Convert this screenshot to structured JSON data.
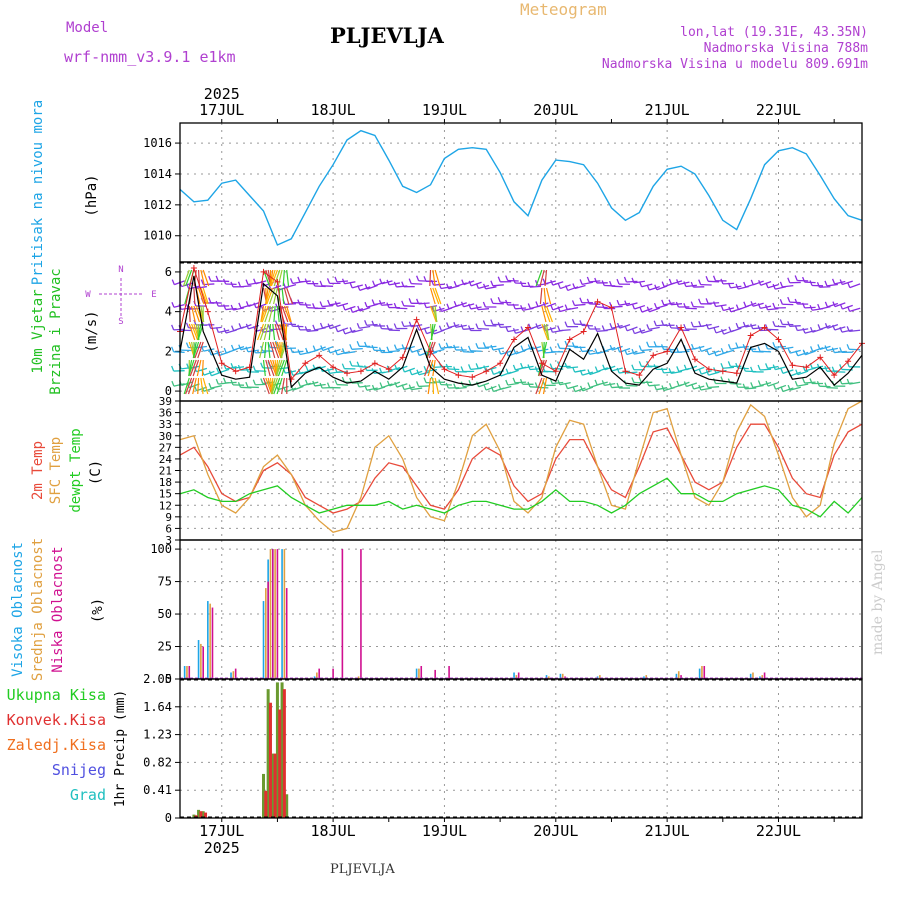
{
  "header": {
    "model_label": "Model",
    "model_name": "wrf-nmm_v3.9.1  e1km",
    "title": "PLJEVLJA",
    "meteogram_label": "Meteogram",
    "lonlat": "lon,lat (19.31E, 43.35N)",
    "altitude": "Nadmorska Visina 788m",
    "model_altitude": "Nadmorska Visina u modelu 809.691m",
    "bottom_title": "PLJEVLJA",
    "watermark": "made by Angel"
  },
  "colors": {
    "pressure": "#1ea5e6",
    "wind_label": "#22c022",
    "wind_speed": "#000000",
    "gust": "#e02020",
    "temp2m": "#e84a3a",
    "sfc": "#e0a040",
    "dewpt": "#22cc22",
    "cloud_high": "#1ea5e6",
    "cloud_mid": "#e0a040",
    "cloud_low": "#d01090",
    "precip_total": "#22cc22",
    "precip_conv": "#e03030",
    "precip_frozen": "#f07020",
    "snow": "#5050e0",
    "graupel": "#20c0c0",
    "purple": "#b040d0"
  },
  "chart_data": {
    "type": "line",
    "time_axis": {
      "top_labels": [
        "17JUL",
        "18JUL",
        "19JUL",
        "20JUL",
        "21JUL",
        "22JUL"
      ],
      "bottom_labels": [
        "17JUL",
        "18JUL",
        "19JUL",
        "20JUL",
        "21JUL",
        "22JUL"
      ],
      "year": "2025",
      "start_hour_offset": 15,
      "span_hours": 147
    },
    "panels": [
      {
        "id": "pressure",
        "ylabel_lines": [
          "Pritisak na nivou mora"
        ],
        "unit": "(hPa)",
        "yticks": [
          "1010",
          "1012",
          "1014",
          "1016"
        ],
        "ylim": [
          1008.3,
          1017.3
        ],
        "series": [
          {
            "x": [
              15,
              18,
              21,
              24,
              27,
              30,
              33,
              36,
              39,
              42,
              45,
              48,
              51,
              54,
              57,
              60,
              63,
              66,
              69,
              72,
              75,
              78,
              81,
              84,
              87,
              90,
              93,
              96,
              99,
              102,
              105,
              108,
              111,
              114,
              117,
              120,
              123,
              126,
              129,
              132,
              135,
              138,
              141,
              144,
              147,
              150,
              153,
              156,
              159,
              162
            ],
            "values": [
              1013.0,
              1012.2,
              1012.3,
              1013.4,
              1013.6,
              1012.6,
              1011.6,
              1009.4,
              1009.8,
              1011.5,
              1013.2,
              1014.6,
              1016.2,
              1016.8,
              1016.5,
              1014.9,
              1013.2,
              1012.8,
              1013.3,
              1015.0,
              1015.6,
              1015.7,
              1015.6,
              1014.1,
              1012.2,
              1011.3,
              1013.6,
              1014.9,
              1014.8,
              1014.6,
              1013.4,
              1011.8,
              1011.0,
              1011.5,
              1013.2,
              1014.3,
              1014.5,
              1014.0,
              1012.6,
              1011.0,
              1010.4,
              1012.4,
              1014.6,
              1015.5,
              1015.7,
              1015.3,
              1013.9,
              1012.4,
              1011.3,
              1011.0
            ]
          }
        ]
      },
      {
        "id": "wind",
        "ylabel_lines": [
          "10m Vjetar",
          "Brzina i Pravac"
        ],
        "unit": "(m/s)",
        "yticks": [
          "0",
          "2",
          "4",
          "6"
        ],
        "ylim": [
          -0.5,
          6.5
        ],
        "compass": {
          "N": "N",
          "E": "E",
          "W": "W",
          "S": "S"
        },
        "series": [
          {
            "name": "speed",
            "x": [
              15,
              18,
              20,
              24,
              27,
              30,
              33,
              36,
              39,
              42,
              45,
              48,
              51,
              54,
              57,
              60,
              63,
              66,
              69,
              72,
              75,
              78,
              81,
              84,
              87,
              90,
              93,
              96,
              99,
              102,
              105,
              108,
              111,
              114,
              117,
              120,
              123,
              126,
              129,
              132,
              135,
              138,
              141,
              144,
              147,
              150,
              153,
              156,
              159,
              162
            ],
            "values": [
              2.0,
              5.8,
              3.0,
              0.8,
              0.6,
              0.7,
              5.4,
              4.8,
              0.2,
              0.9,
              1.2,
              0.7,
              0.4,
              0.5,
              1.0,
              0.6,
              1.2,
              3.1,
              1.2,
              0.6,
              0.4,
              0.3,
              0.5,
              0.8,
              2.2,
              2.7,
              0.8,
              0.5,
              2.1,
              1.6,
              2.9,
              1.0,
              0.4,
              0.3,
              1.1,
              1.4,
              2.6,
              0.9,
              0.6,
              0.5,
              0.4,
              2.2,
              2.4,
              2.0,
              0.6,
              0.7,
              1.2,
              0.3,
              0.9,
              1.8
            ]
          },
          {
            "name": "gust",
            "x": [
              15,
              18,
              21,
              24,
              27,
              30,
              33,
              36,
              39,
              42,
              45,
              48,
              51,
              54,
              57,
              60,
              63,
              66,
              69,
              72,
              75,
              78,
              81,
              84,
              87,
              90,
              93,
              96,
              99,
              102,
              105,
              108,
              111,
              114,
              117,
              120,
              123,
              126,
              129,
              132,
              135,
              138,
              141,
              144,
              147,
              150,
              153,
              156,
              159,
              162
            ],
            "values": [
              3.0,
              6.2,
              4.0,
              1.4,
              1.0,
              1.2,
              6.0,
              5.5,
              0.6,
              1.4,
              1.8,
              1.2,
              0.9,
              1.0,
              1.4,
              1.1,
              1.7,
              3.6,
              2.0,
              1.1,
              0.8,
              0.7,
              1.0,
              1.4,
              2.6,
              3.2,
              1.4,
              1.0,
              2.6,
              3.0,
              4.5,
              4.2,
              1.0,
              0.8,
              1.8,
              2.0,
              3.2,
              1.6,
              1.1,
              1.0,
              0.9,
              2.8,
              3.2,
              2.6,
              1.3,
              1.2,
              1.7,
              0.8,
              1.5,
              2.4
            ]
          }
        ]
      },
      {
        "id": "temperature",
        "ylabel_lines": [
          "2m Temp",
          "SFC Temp",
          "dewpt Temp"
        ],
        "unit": "(C)",
        "yticks": [
          "3",
          "6",
          "9",
          "12",
          "15",
          "18",
          "21",
          "24",
          "27",
          "30",
          "33",
          "36",
          "39"
        ],
        "ylim": [
          3,
          39
        ],
        "series": [
          {
            "name": "2m Temp",
            "x": [
              15,
              18,
              21,
              24,
              27,
              30,
              33,
              36,
              39,
              42,
              45,
              48,
              51,
              54,
              57,
              60,
              63,
              66,
              69,
              72,
              75,
              78,
              81,
              84,
              87,
              90,
              93,
              96,
              99,
              102,
              105,
              108,
              111,
              114,
              117,
              120,
              123,
              126,
              129,
              132,
              135,
              138,
              141,
              144,
              147,
              150,
              153,
              156,
              159,
              162
            ],
            "values": [
              25,
              27,
              22,
              15,
              13,
              14,
              21,
              23,
              20,
              14,
              12,
              10,
              11,
              13,
              19,
              23,
              22,
              17,
              12,
              11,
              16,
              24,
              27,
              25,
              17,
              13,
              15,
              24,
              29,
              29,
              22,
              16,
              14,
              22,
              31,
              32,
              25,
              18,
              16,
              18,
              27,
              33,
              33,
              27,
              19,
              15,
              14,
              25,
              31,
              33
            ]
          },
          {
            "name": "SFC Temp",
            "x": [
              15,
              18,
              21,
              24,
              27,
              30,
              33,
              36,
              39,
              42,
              45,
              48,
              51,
              54,
              57,
              60,
              63,
              66,
              69,
              72,
              75,
              78,
              81,
              84,
              87,
              90,
              93,
              96,
              99,
              102,
              105,
              108,
              111,
              114,
              117,
              120,
              123,
              126,
              129,
              132,
              135,
              138,
              141,
              144,
              147,
              150,
              153,
              156,
              159,
              162
            ],
            "values": [
              29,
              30,
              20,
              12,
              10,
              14,
              22,
              25,
              20,
              12,
              8,
              5,
              6,
              14,
              27,
              30,
              24,
              14,
              9,
              8,
              18,
              30,
              33,
              26,
              13,
              10,
              14,
              27,
              34,
              33,
              22,
              12,
              11,
              24,
              36,
              37,
              25,
              14,
              12,
              18,
              31,
              38,
              35,
              25,
              14,
              9,
              12,
              28,
              37,
              39
            ]
          },
          {
            "name": "dewpt Temp",
            "x": [
              15,
              18,
              21,
              24,
              27,
              30,
              33,
              36,
              39,
              42,
              45,
              48,
              51,
              54,
              57,
              60,
              63,
              66,
              69,
              72,
              75,
              78,
              81,
              84,
              87,
              90,
              93,
              96,
              99,
              102,
              105,
              108,
              111,
              114,
              117,
              120,
              123,
              126,
              129,
              132,
              135,
              138,
              141,
              144,
              147,
              150,
              153,
              156,
              159,
              162
            ],
            "values": [
              15,
              16,
              14,
              13,
              13,
              15,
              16,
              17,
              14,
              12,
              10,
              11,
              12,
              12,
              12,
              13,
              11,
              12,
              11,
              10,
              12,
              13,
              13,
              12,
              11,
              11,
              13,
              16,
              13,
              13,
              12,
              10,
              12,
              15,
              17,
              19,
              15,
              15,
              13,
              13,
              15,
              16,
              17,
              16,
              12,
              11,
              9,
              13,
              10,
              14
            ]
          }
        ]
      },
      {
        "id": "clouds",
        "ylabel_lines": [
          "Visoka Oblacnost",
          "Srednja Oblacnost",
          "Niska Oblacnost"
        ],
        "unit": "(%)",
        "yticks": [
          "0",
          "25",
          "50",
          "75",
          "100"
        ],
        "ylim": [
          0,
          107
        ],
        "series": [
          {
            "name": "Visoka Oblacnost",
            "x": [
              16,
              19,
              21,
              26,
              33,
              34,
              35,
              37,
              44,
              53,
              66,
              87,
              94,
              97,
              105,
              115,
              122,
              127,
              138,
              140
            ],
            "values": [
              10,
              30,
              60,
              5,
              60,
              92,
              100,
              100,
              2,
              0,
              8,
              5,
              3,
              4,
              2,
              2,
              4,
              8,
              4,
              2
            ]
          },
          {
            "name": "Srednja Oblacnost",
            "x": [
              16.5,
              19.5,
              21.5,
              26.5,
              33.5,
              34.5,
              35.5,
              37.5,
              44.5,
              53.5,
              66.5,
              87.5,
              94.5,
              97.5,
              105.5,
              115.5,
              122.5,
              127.5,
              138.5,
              140.5
            ],
            "values": [
              10,
              27,
              58,
              6,
              70,
              100,
              100,
              100,
              5,
              2,
              8,
              3,
              2,
              4,
              3,
              3,
              6,
              10,
              5,
              3
            ]
          },
          {
            "name": "Niska Oblacnost",
            "x": [
              17,
              20,
              22,
              27,
              34,
              35,
              36,
              38,
              45,
              48,
              50,
              54,
              67,
              70,
              73,
              88,
              98,
              123,
              128,
              141
            ],
            "values": [
              10,
              25,
              55,
              8,
              75,
              100,
              100,
              70,
              8,
              8,
              100,
              100,
              10,
              7,
              10,
              5,
              2,
              3,
              10,
              5
            ]
          }
        ]
      },
      {
        "id": "precip",
        "legend": [
          "Ukupna Kisa",
          "Konvek.Kisa",
          "Zaledj.Kisa",
          "Snijeg",
          "Grad"
        ],
        "unit": "1hr Precip (mm)",
        "yticks": [
          "0",
          "0.41",
          "0.82",
          "1.23",
          "1.64",
          "2.05"
        ],
        "ylim": [
          0,
          2.05
        ],
        "series": [
          {
            "name": "Ukupna Kisa",
            "x": [
              18,
              19,
              20,
              33,
              34,
              35,
              36,
              37,
              38
            ],
            "values": [
              0.05,
              0.12,
              0.1,
              0.65,
              1.9,
              0.95,
              2.0,
              2.0,
              0.35
            ]
          },
          {
            "name": "Konvek.Kisa",
            "x": [
              18.5,
              19.5,
              20.5,
              33.5,
              34.5,
              35.5,
              36.5,
              37.5
            ],
            "values": [
              0.04,
              0.1,
              0.08,
              0.4,
              1.7,
              0.95,
              1.6,
              1.9
            ]
          }
        ]
      }
    ]
  }
}
